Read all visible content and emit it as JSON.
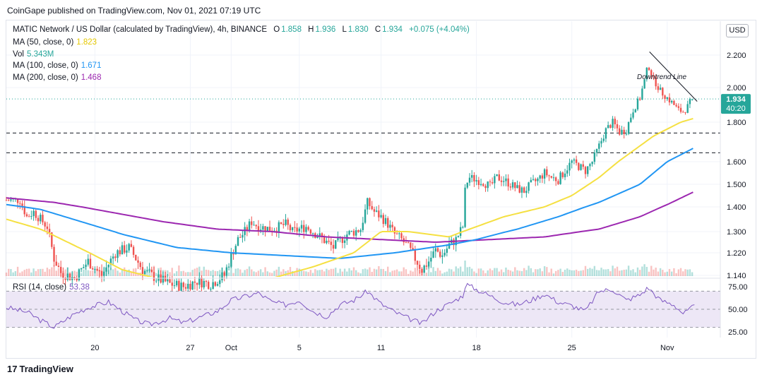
{
  "publisher_line": "CoinGape published on TradingView.com, Nov 01, 2021 07:19 UTC",
  "legend": {
    "symbol": "MATIC Network / US Dollar (calculated by TradingView), 4h, BINANCE",
    "open_label": "O",
    "open": "1.858",
    "high_label": "H",
    "high": "1.936",
    "low_label": "L",
    "low": "1.830",
    "close_label": "C",
    "close": "1.934",
    "change": "+0.075 (+4.04%)",
    "ma50_label": "MA (50, close, 0)",
    "ma50_value": "1.823",
    "vol_label": "Vol",
    "vol_value": "5.343M",
    "ma100_label": "MA (100, close, 0)",
    "ma100_value": "1.671",
    "ma200_label": "MA (200, close, 0)",
    "ma200_value": "1.468",
    "rsi_label": "RSI (14, close)",
    "rsi_value": "53.38"
  },
  "currency_button": "USD",
  "price_tag": {
    "price": "1.934",
    "countdown": "40:20"
  },
  "annotation": "Downtrend Line",
  "footer_brand": "TradingView",
  "footer_logo": "17",
  "colors": {
    "up": "#26a69a",
    "down": "#ef5350",
    "ma50": "#f5e042",
    "ma100": "#2196f3",
    "ma200": "#9c27b0",
    "rsi": "#7e57c2",
    "rsi_band": "#ede7f6"
  },
  "chart_data": {
    "type": "candlestick",
    "price_axis_ticks": [
      2.2,
      2.0,
      1.8,
      1.6,
      1.5,
      1.4,
      1.3,
      1.22,
      1.14
    ],
    "price_axis_labels": [
      "2.200",
      "2.000",
      "1.800",
      "1.600",
      "1.500",
      "1.400",
      "1.300",
      "1.220",
      "1.140"
    ],
    "rsi_axis_ticks": [
      75,
      50,
      25
    ],
    "rsi_axis_labels": [
      "75.00",
      "50.00",
      "25.00"
    ],
    "rsi_bands": [
      70,
      50,
      30
    ],
    "x_ticks": [
      {
        "label": "20",
        "day": 20
      },
      {
        "label": "27",
        "day": 27
      },
      {
        "label": "Oct",
        "day": 30
      },
      {
        "label": "5",
        "day": 35
      },
      {
        "label": "11",
        "day": 41
      },
      {
        "label": "18",
        "day": 48
      },
      {
        "label": "25",
        "day": 55
      },
      {
        "label": "Nov",
        "day": 62
      }
    ],
    "x_unit": "days since Sep 1, 2021",
    "last_price": 1.934,
    "horizontal_levels": [
      1.745,
      1.645
    ],
    "price_anchors": [
      [
        14.5,
        1.43
      ],
      [
        15.0,
        1.36
      ],
      [
        15.5,
        1.38
      ],
      [
        16.5,
        1.32
      ],
      [
        17.0,
        1.2
      ],
      [
        17.5,
        1.15
      ],
      [
        18.5,
        1.13
      ],
      [
        19.5,
        1.19
      ],
      [
        20.5,
        1.14
      ],
      [
        21.5,
        1.22
      ],
      [
        22.5,
        1.24
      ],
      [
        23.5,
        1.16
      ],
      [
        24.5,
        1.13
      ],
      [
        25.5,
        1.11
      ],
      [
        26.5,
        1.1
      ],
      [
        27.5,
        1.12
      ],
      [
        28.5,
        1.11
      ],
      [
        29.5,
        1.14
      ],
      [
        30.0,
        1.21
      ],
      [
        30.5,
        1.27
      ],
      [
        31.0,
        1.3
      ],
      [
        31.5,
        1.34
      ],
      [
        32.0,
        1.32
      ],
      [
        33.0,
        1.31
      ],
      [
        34.0,
        1.33
      ],
      [
        34.5,
        1.3
      ],
      [
        35.5,
        1.32
      ],
      [
        36.5,
        1.28
      ],
      [
        37.5,
        1.24
      ],
      [
        38.5,
        1.29
      ],
      [
        39.5,
        1.31
      ],
      [
        40.0,
        1.42
      ],
      [
        40.5,
        1.38
      ],
      [
        41.0,
        1.36
      ],
      [
        41.5,
        1.33
      ],
      [
        42.0,
        1.29
      ],
      [
        42.5,
        1.27
      ],
      [
        43.0,
        1.24
      ],
      [
        43.5,
        1.2
      ],
      [
        44.0,
        1.16
      ],
      [
        44.5,
        1.19
      ],
      [
        45.0,
        1.23
      ],
      [
        45.5,
        1.21
      ],
      [
        46.0,
        1.25
      ],
      [
        46.5,
        1.27
      ],
      [
        47.0,
        1.32
      ],
      [
        47.2,
        1.5
      ],
      [
        47.5,
        1.53
      ],
      [
        48.0,
        1.52
      ],
      [
        48.5,
        1.51
      ],
      [
        49.0,
        1.49
      ],
      [
        49.5,
        1.53
      ],
      [
        50.0,
        1.52
      ],
      [
        50.5,
        1.5
      ],
      [
        51.0,
        1.48
      ],
      [
        51.5,
        1.47
      ],
      [
        52.0,
        1.5
      ],
      [
        52.5,
        1.52
      ],
      [
        53.0,
        1.55
      ],
      [
        53.5,
        1.53
      ],
      [
        54.0,
        1.52
      ],
      [
        54.5,
        1.56
      ],
      [
        55.0,
        1.6
      ],
      [
        55.5,
        1.58
      ],
      [
        56.0,
        1.56
      ],
      [
        56.5,
        1.6
      ],
      [
        57.0,
        1.68
      ],
      [
        57.5,
        1.76
      ],
      [
        58.0,
        1.8
      ],
      [
        58.5,
        1.75
      ],
      [
        59.0,
        1.76
      ],
      [
        59.5,
        1.87
      ],
      [
        60.0,
        1.94
      ],
      [
        60.3,
        2.03
      ],
      [
        60.6,
        2.14
      ],
      [
        61.0,
        2.05
      ],
      [
        61.5,
        1.98
      ],
      [
        62.0,
        1.94
      ],
      [
        62.5,
        1.9
      ],
      [
        62.8,
        1.87
      ],
      [
        63.2,
        1.86
      ],
      [
        63.5,
        1.89
      ],
      [
        63.8,
        1.934
      ]
    ],
    "ma50_anchors": [
      [
        13.5,
        1.35
      ],
      [
        16,
        1.31
      ],
      [
        18,
        1.26
      ],
      [
        20,
        1.21
      ],
      [
        22,
        1.16
      ],
      [
        24.5,
        1.13
      ],
      [
        27,
        1.1
      ],
      [
        30,
        1.1
      ],
      [
        33,
        1.13
      ],
      [
        36,
        1.17
      ],
      [
        39,
        1.22
      ],
      [
        41,
        1.3
      ],
      [
        43,
        1.3
      ],
      [
        46,
        1.28
      ],
      [
        48,
        1.32
      ],
      [
        50,
        1.36
      ],
      [
        53,
        1.4
      ],
      [
        55,
        1.45
      ],
      [
        57,
        1.53
      ],
      [
        59,
        1.63
      ],
      [
        61,
        1.73
      ],
      [
        63,
        1.8
      ],
      [
        64,
        1.823
      ]
    ],
    "ma100_anchors": [
      [
        13.5,
        1.41
      ],
      [
        16,
        1.39
      ],
      [
        19,
        1.34
      ],
      [
        22,
        1.29
      ],
      [
        26,
        1.24
      ],
      [
        30,
        1.22
      ],
      [
        34,
        1.21
      ],
      [
        38,
        1.2
      ],
      [
        42,
        1.22
      ],
      [
        46,
        1.25
      ],
      [
        48,
        1.27
      ],
      [
        51,
        1.31
      ],
      [
        54,
        1.36
      ],
      [
        57,
        1.42
      ],
      [
        60,
        1.5
      ],
      [
        62,
        1.6
      ],
      [
        64,
        1.671
      ]
    ],
    "ma200_anchors": [
      [
        13.5,
        1.44
      ],
      [
        17,
        1.42
      ],
      [
        21,
        1.38
      ],
      [
        25,
        1.34
      ],
      [
        29,
        1.31
      ],
      [
        33,
        1.3
      ],
      [
        37,
        1.28
      ],
      [
        41,
        1.27
      ],
      [
        45,
        1.26
      ],
      [
        49,
        1.27
      ],
      [
        53,
        1.28
      ],
      [
        57,
        1.31
      ],
      [
        60,
        1.36
      ],
      [
        62,
        1.41
      ],
      [
        64,
        1.468
      ]
    ],
    "rsi_anchors": [
      [
        13.5,
        52
      ],
      [
        15,
        47
      ],
      [
        16,
        38
      ],
      [
        17,
        30
      ],
      [
        18.5,
        45
      ],
      [
        19.5,
        52
      ],
      [
        21,
        58
      ],
      [
        22,
        48
      ],
      [
        23,
        38
      ],
      [
        24,
        33
      ],
      [
        25.5,
        40
      ],
      [
        26.5,
        35
      ],
      [
        27.5,
        40
      ],
      [
        29,
        48
      ],
      [
        30,
        60
      ],
      [
        31,
        64
      ],
      [
        32,
        68
      ],
      [
        33,
        58
      ],
      [
        34,
        55
      ],
      [
        35,
        60
      ],
      [
        36,
        48
      ],
      [
        37,
        42
      ],
      [
        38,
        55
      ],
      [
        39,
        60
      ],
      [
        40,
        70
      ],
      [
        41,
        56
      ],
      [
        42,
        47
      ],
      [
        43,
        40
      ],
      [
        44,
        34
      ],
      [
        45,
        48
      ],
      [
        46,
        56
      ],
      [
        47,
        65
      ],
      [
        47.2,
        78
      ],
      [
        48,
        72
      ],
      [
        49,
        65
      ],
      [
        50,
        58
      ],
      [
        51,
        55
      ],
      [
        52,
        60
      ],
      [
        53,
        67
      ],
      [
        54,
        58
      ],
      [
        55,
        54
      ],
      [
        56,
        48
      ],
      [
        57,
        70
      ],
      [
        58,
        72
      ],
      [
        59,
        60
      ],
      [
        60,
        66
      ],
      [
        60.6,
        74
      ],
      [
        61.5,
        60
      ],
      [
        62.5,
        55
      ],
      [
        63.2,
        45
      ],
      [
        64,
        53.38
      ]
    ],
    "trendline": [
      [
        60.7,
        2.22
      ],
      [
        64.2,
        1.92
      ]
    ]
  }
}
